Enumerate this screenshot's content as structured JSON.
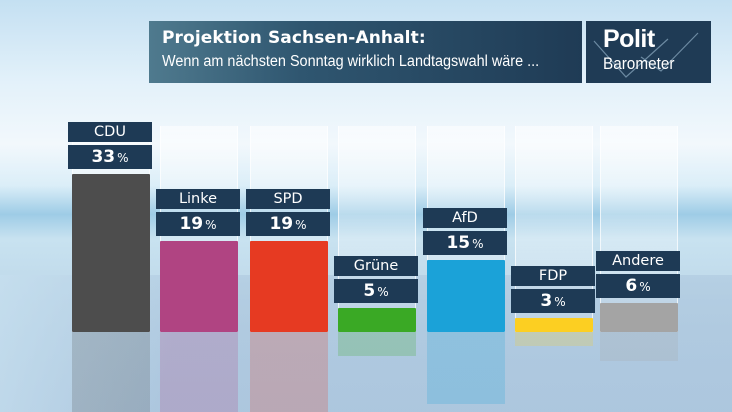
{
  "header": {
    "title": "Projektion Sachsen-Anhalt:",
    "subtitle": "Wenn am nächsten Sonntag wirklich Landtagswahl wäre ...",
    "logo_line1": "Polit",
    "logo_line2": "Barometer"
  },
  "chart_data": {
    "type": "bar",
    "title": "Projektion Sachsen-Anhalt:",
    "subtitle": "Wenn am nächsten Sonntag wirklich Landtagswahl wäre ...",
    "xlabel": "",
    "ylabel": "",
    "unit": "%",
    "ylim": [
      0,
      40
    ],
    "grid": false,
    "legend": "none",
    "categories": [
      "CDU",
      "Linke",
      "SPD",
      "Grüne",
      "AfD",
      "FDP",
      "Andere"
    ],
    "values": [
      33,
      19,
      19,
      5,
      15,
      3,
      6
    ],
    "colors": [
      "#4d4d4d",
      "#b04482",
      "#e63a22",
      "#3aa925",
      "#1ba2d8",
      "#fccf22",
      "#a4a4a4"
    ],
    "data_labels": [
      "33",
      "19",
      "19",
      "5",
      "15",
      "3",
      "6"
    ]
  }
}
